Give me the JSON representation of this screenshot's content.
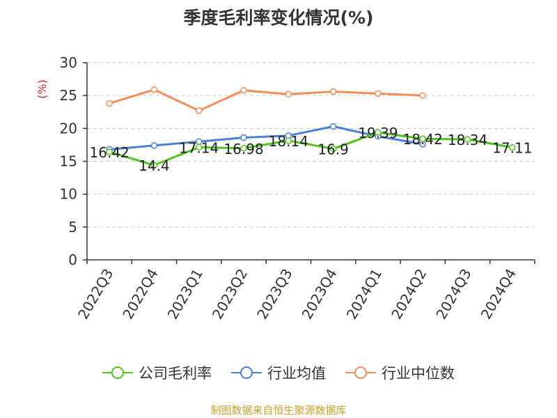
{
  "title": "季度毛利率变化情况(%)",
  "source": "制图数据来自恒生聚源数据库",
  "chart_data": {
    "type": "line",
    "title": "季度毛利率变化情况(%)",
    "ylabel": "(%)",
    "ylim": [
      0,
      30
    ],
    "yticks": [
      0,
      5,
      10,
      15,
      20,
      25,
      30
    ],
    "grid": true,
    "legend_position": "bottom",
    "categories": [
      "2022Q3",
      "2022Q4",
      "2023Q1",
      "2023Q2",
      "2023Q3",
      "2023Q4",
      "2024Q1",
      "2024Q2",
      "2024Q3",
      "2024Q4"
    ],
    "series": [
      {
        "name": "公司毛利率",
        "color": "#52c41a",
        "labeled": true,
        "values": [
          16.42,
          14.4,
          17.14,
          16.98,
          18.14,
          16.9,
          19.39,
          18.42,
          18.34,
          17.11
        ],
        "labels": [
          "16.42",
          "14.4",
          "17.14",
          "16.98",
          "18.14",
          "16.9",
          "19.39",
          "18.42",
          "18.34",
          "17.11"
        ]
      },
      {
        "name": "行业均值",
        "color": "#4a7fdc",
        "labeled": false,
        "values": [
          16.8,
          17.4,
          18.0,
          18.6,
          18.9,
          20.3,
          18.8,
          17.6,
          null,
          null
        ]
      },
      {
        "name": "行业中位数",
        "color": "#f58c5a",
        "labeled": false,
        "values": [
          23.8,
          25.9,
          22.7,
          25.8,
          25.2,
          25.6,
          25.3,
          25.0,
          null,
          null
        ]
      }
    ]
  }
}
